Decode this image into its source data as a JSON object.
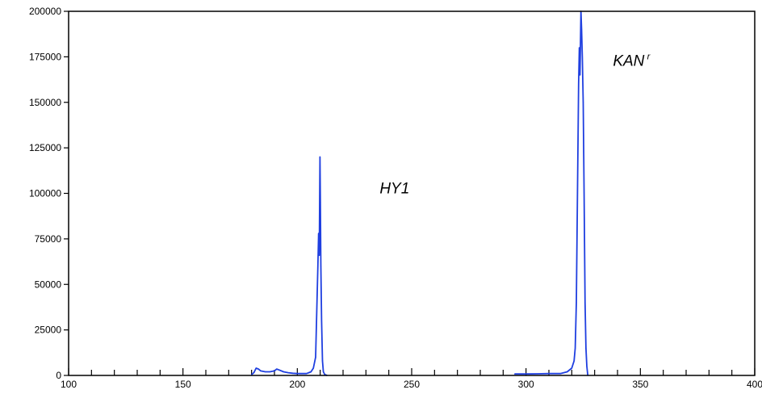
{
  "chart_data": {
    "type": "line",
    "title": "",
    "xlabel": "",
    "ylabel": "",
    "xlim": [
      100,
      400
    ],
    "ylim": [
      0,
      200000
    ],
    "x_ticks": [
      100,
      150,
      200,
      250,
      300,
      350,
      400
    ],
    "x_tick_labels": [
      "100",
      "150",
      "200",
      "250",
      "300",
      "350",
      "400"
    ],
    "y_ticks": [
      0,
      25000,
      50000,
      75000,
      100000,
      125000,
      150000,
      175000,
      200000
    ],
    "y_tick_labels": [
      "0",
      "25000",
      "50000",
      "75000",
      "100000",
      "125000",
      "150000",
      "175000",
      "200000"
    ],
    "grid": false,
    "line_color": "#1f3fe0",
    "annotations": [
      {
        "text": "HY1",
        "sup": "",
        "x": 236,
        "y": 100000
      },
      {
        "text": "KAN",
        "sup": "r",
        "x": 338,
        "y": 170000
      }
    ],
    "series": [
      {
        "x": [
          180,
          181,
          182,
          183,
          184,
          186,
          188,
          190,
          191,
          192,
          194,
          196,
          198,
          200,
          202,
          204,
          205,
          206,
          207,
          208,
          208.5,
          209,
          209.3,
          209.6,
          209.9,
          210.1,
          210.3,
          210.6,
          211,
          211.4,
          212,
          213
        ],
        "y": [
          500,
          1500,
          4000,
          3500,
          2500,
          2000,
          2000,
          2500,
          3500,
          3000,
          2000,
          1500,
          1200,
          1000,
          1000,
          1000,
          1500,
          2000,
          4000,
          10000,
          35000,
          60000,
          78000,
          66000,
          120000,
          95000,
          60000,
          30000,
          8000,
          2000,
          500,
          0
        ]
      },
      {
        "x": [
          295,
          300,
          305,
          310,
          315,
          318,
          320,
          321,
          321.5,
          322,
          322.5,
          323,
          323.3,
          323.6,
          324,
          324.3,
          324.6,
          325,
          325.4,
          325.8,
          326.2,
          326.6,
          327
        ],
        "y": [
          800,
          800,
          900,
          1000,
          1000,
          2000,
          4000,
          8000,
          15000,
          40000,
          100000,
          160000,
          180000,
          165000,
          200000,
          190000,
          175000,
          150000,
          100000,
          40000,
          15000,
          5000,
          0
        ]
      }
    ]
  }
}
